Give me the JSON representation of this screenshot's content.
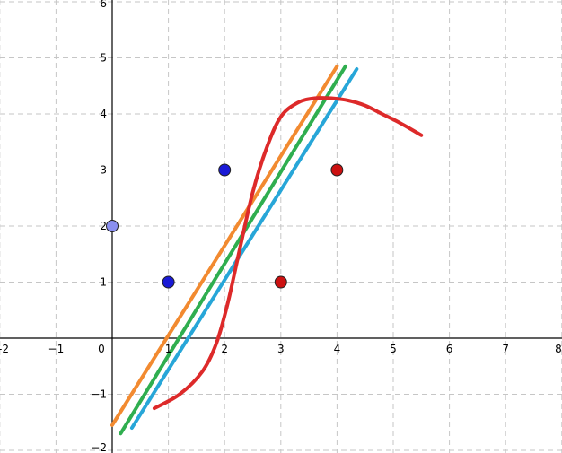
{
  "chart_data": {
    "type": "scatter",
    "title": "",
    "xlabel": "",
    "ylabel": "",
    "xlim": [
      -2,
      8
    ],
    "ylim": [
      -2,
      6
    ],
    "grid": true,
    "grid_style": "dashed",
    "x_ticks": [
      "-2",
      "−1",
      "0",
      "1",
      "2",
      "3",
      "4",
      "5",
      "6",
      "7",
      "8"
    ],
    "y_ticks": [
      "−2",
      "−1",
      "1",
      "2",
      "3",
      "4",
      "5",
      "6"
    ],
    "x_tick_values": [
      -2,
      -1,
      0,
      1,
      2,
      3,
      4,
      5,
      6,
      7,
      8
    ],
    "y_tick_values": [
      -2,
      -1,
      1,
      2,
      3,
      4,
      5,
      6
    ],
    "points": [
      {
        "x": 0,
        "y": 2,
        "color": "#8a8ff0"
      },
      {
        "x": 1,
        "y": 1,
        "color": "#1a1ad6"
      },
      {
        "x": 2,
        "y": 3,
        "color": "#1a1ad6"
      },
      {
        "x": 3,
        "y": 1,
        "color": "#cc1111"
      },
      {
        "x": 4,
        "y": 3,
        "color": "#cc1111"
      }
    ],
    "lines": [
      {
        "color": "#f28a30",
        "x": [
          0,
          4
        ],
        "y": [
          -1.55,
          4.85
        ]
      },
      {
        "color": "#2fae4f",
        "x": [
          0.15,
          4.15
        ],
        "y": [
          -1.7,
          4.85
        ]
      },
      {
        "color": "#27a6d8",
        "x": [
          0.35,
          4.35
        ],
        "y": [
          -1.6,
          4.8
        ]
      }
    ],
    "curve": {
      "color": "#dd2a2a",
      "x": [
        0.75,
        1.2,
        1.6,
        1.85,
        2.05,
        2.25,
        2.5,
        2.75,
        3.0,
        3.3,
        3.6,
        3.9,
        4.2,
        4.5,
        4.8,
        5.1,
        5.5
      ],
      "y": [
        -1.25,
        -1.0,
        -0.6,
        -0.1,
        0.6,
        1.5,
        2.6,
        3.4,
        3.95,
        4.2,
        4.28,
        4.28,
        4.24,
        4.15,
        4.0,
        3.85,
        3.62
      ]
    }
  }
}
